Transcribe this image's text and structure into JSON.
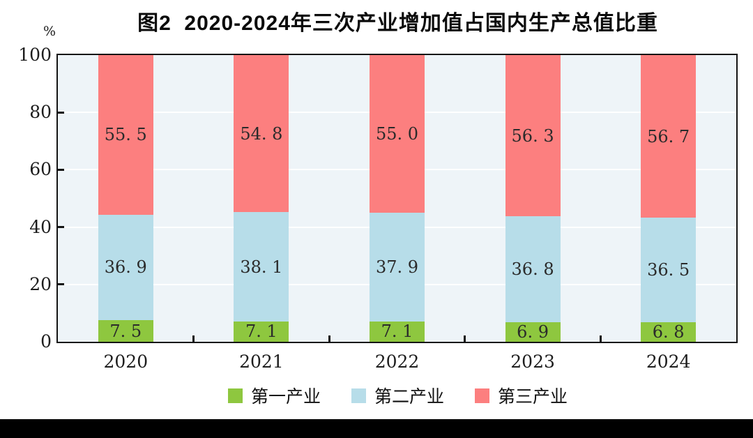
{
  "title": "图2  2020-2024年三次产业增加值占国内生产总值比重",
  "y_axis": {
    "unit": "%",
    "ticks": [
      "100",
      "80",
      "60",
      "40",
      "20",
      "0"
    ],
    "tick_values": [
      100,
      80,
      60,
      40,
      20,
      0
    ]
  },
  "x_axis": {
    "categories": [
      "2020",
      "2021",
      "2022",
      "2023",
      "2024"
    ]
  },
  "legend": [
    {
      "label": "第一产业",
      "color": "#8ec73f"
    },
    {
      "label": "第二产业",
      "color": "#b7dde9"
    },
    {
      "label": "第三产业",
      "color": "#fc7f7f"
    }
  ],
  "chart_data": {
    "type": "bar",
    "stacked": true,
    "title": "图2  2020-2024年三次产业增加值占国内生产总值比重",
    "ylabel": "%",
    "ylim": [
      0,
      100
    ],
    "grid": true,
    "gridline_values": [
      20,
      40,
      60,
      80
    ],
    "legend_position": "bottom",
    "categories": [
      "2020",
      "2021",
      "2022",
      "2023",
      "2024"
    ],
    "series": [
      {
        "name": "第一产业",
        "color": "#8ec73f",
        "values": [
          7.5,
          7.1,
          7.1,
          6.9,
          6.8
        ],
        "labels": [
          "7. 5",
          "7. 1",
          "7. 1",
          "6. 9",
          "6. 8"
        ]
      },
      {
        "name": "第二产业",
        "color": "#b7dde9",
        "values": [
          36.9,
          38.1,
          37.9,
          36.8,
          36.5
        ],
        "labels": [
          "36. 9",
          "38. 1",
          "37. 9",
          "36. 8",
          "36. 5"
        ]
      },
      {
        "name": "第三产业",
        "color": "#fc7f7f",
        "values": [
          55.5,
          54.8,
          55.0,
          56.3,
          56.7
        ],
        "labels": [
          "55. 5",
          "54. 8",
          "55. 0",
          "56. 3",
          "56. 7"
        ]
      }
    ]
  },
  "colors": {
    "plot_background": "#eef4f8",
    "gridline": "#ffffff",
    "axis": "#141414",
    "segment_label_text": "#2b2b2b",
    "bottom_strip": "#000000"
  }
}
